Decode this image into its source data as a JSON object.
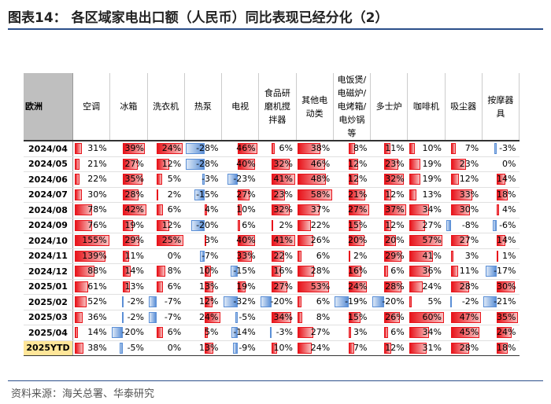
{
  "header": {
    "title": "图表14：  各区域家电出口额（人民币）同比表现已经分化（2）"
  },
  "table": {
    "corner": "欧洲",
    "columns": [
      "空调",
      "冰箱",
      "洗衣机",
      "热泵",
      "电视",
      "食品研磨机搅拌器",
      "其他电动类",
      "电饭煲/电磁炉/电烤箱/电炒锅等",
      "多士炉",
      "咖啡机",
      "吸尘器",
      "按摩器具"
    ],
    "rows": [
      [
        "2024/04",
        "31%",
        "39%",
        "24%",
        "-28%",
        "46%",
        "6%",
        "38%",
        "8%",
        "11%",
        "10%",
        "7%",
        "-3%"
      ],
      [
        "2024/05",
        "21%",
        "27%",
        "12%",
        "-28%",
        "40%",
        "32%",
        "46%",
        "12%",
        "23%",
        "19%",
        "23%",
        "0%"
      ],
      [
        "2024/06",
        "22%",
        "35%",
        "5%",
        "-3%",
        "-23%",
        "41%",
        "48%",
        "12%",
        "32%",
        "19%",
        "12%",
        "14%"
      ],
      [
        "2024/07",
        "30%",
        "28%",
        "2%",
        "-15%",
        "27%",
        "23%",
        "58%",
        "21%",
        "12%",
        "13%",
        "33%",
        "18%"
      ],
      [
        "2024/08",
        "78%",
        "42%",
        "6%",
        "4%",
        "10%",
        "32%",
        "37%",
        "27%",
        "37%",
        "34%",
        "30%",
        "4%"
      ],
      [
        "2024/09",
        "76%",
        "19%",
        "12%",
        "-20%",
        "6%",
        "2%",
        "22%",
        "15%",
        "12%",
        "27%",
        "-8%",
        "-6%"
      ],
      [
        "2024/10",
        "155%",
        "29%",
        "25%",
        "3%",
        "40%",
        "41%",
        "26%",
        "20%",
        "20%",
        "57%",
        "27%",
        "14%"
      ],
      [
        "2024/11",
        "139%",
        "11%",
        "0%",
        "-7%",
        "33%",
        "22%",
        "6%",
        "2%",
        "29%",
        "41%",
        "3%",
        "1%"
      ],
      [
        "2024/12",
        "88%",
        "14%",
        "8%",
        "10%",
        "-15%",
        "16%",
        "28%",
        "16%",
        "6%",
        "36%",
        "11%",
        "-17%"
      ],
      [
        "2025/01",
        "61%",
        "13%",
        "6%",
        "13%",
        "19%",
        "27%",
        "53%",
        "24%",
        "28%",
        "24%",
        "28%",
        "30%"
      ],
      [
        "2025/02",
        "52%",
        "-2%",
        "-7%",
        "12%",
        "-32%",
        "-20%",
        "6%",
        "-19%",
        "-20%",
        "5%",
        "-2%",
        "-21%"
      ],
      [
        "2025/03",
        "36%",
        "-2%",
        "-7%",
        "24%",
        "-5%",
        "34%",
        "8%",
        "15%",
        "26%",
        "60%",
        "47%",
        "35%"
      ],
      [
        "2025/04",
        "14%",
        "-20%",
        "6%",
        "5%",
        "-14%",
        "-3%",
        "27%",
        "3%",
        "6%",
        "34%",
        "45%",
        "24%"
      ],
      [
        "2025YTD",
        "38%",
        "-5%",
        "0%",
        "13%",
        "-9%",
        "10%",
        "24%",
        "7%",
        "12%",
        "31%",
        "28%",
        "18%"
      ]
    ]
  },
  "footer": {
    "source": "资料来源：海关总署、华泰研究"
  }
}
